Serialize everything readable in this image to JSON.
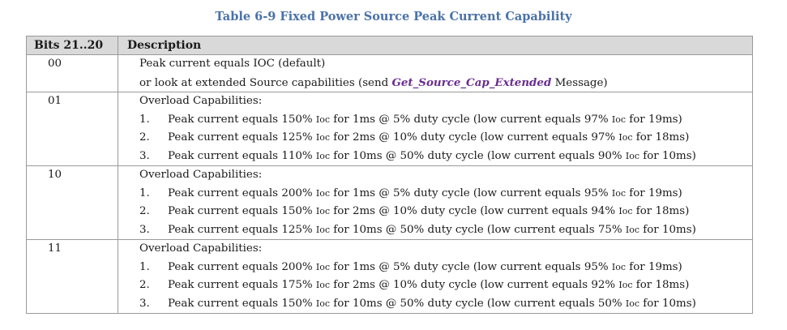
{
  "caption": "Table 6-9 Fixed Power Source Peak Current Capability",
  "headers": {
    "bits": "Bits 21..20",
    "description": "Description"
  },
  "row00": {
    "bits": "00",
    "line1_a": "Peak current equals ",
    "line1_ioc": "IOC",
    "line1_b": " (default)",
    "line2_a": "or look at extended Source capabilities (send ",
    "line2_cmd": "Get_Source_Cap_Extended",
    "line2_b": " Message)"
  },
  "rows": [
    {
      "bits": "01",
      "title": "Overload Capabilities:",
      "items": [
        {
          "num": "1.",
          "peak": "150%",
          "pt": "1ms",
          "duty": "5%",
          "low": "97%",
          "lt": "19ms"
        },
        {
          "num": "2.",
          "peak": "125%",
          "pt": "2ms",
          "duty": "10%",
          "low": "97%",
          "lt": "18ms"
        },
        {
          "num": "3.",
          "peak": "110%",
          "pt": "10ms",
          "duty": "50%",
          "low": "90%",
          "lt": "10ms"
        }
      ]
    },
    {
      "bits": "10",
      "title": "Overload Capabilities:",
      "items": [
        {
          "num": "1.",
          "peak": "200%",
          "pt": "1ms",
          "duty": "5%",
          "low": "95%",
          "lt": "19ms"
        },
        {
          "num": "2.",
          "peak": "150%",
          "pt": "2ms",
          "duty": "10%",
          "low": "94%",
          "lt": "18ms"
        },
        {
          "num": "3.",
          "peak": "125%",
          "pt": "10ms",
          "duty": "50%",
          "low": "75%",
          "lt": "10ms"
        }
      ]
    },
    {
      "bits": "11",
      "title": "Overload Capabilities:",
      "items": [
        {
          "num": "1.",
          "peak": "200%",
          "pt": "1ms",
          "duty": "5%",
          "low": "95%",
          "lt": "19ms"
        },
        {
          "num": "2.",
          "peak": "175%",
          "pt": "2ms",
          "duty": "10%",
          "low": "92%",
          "lt": "18ms"
        },
        {
          "num": "3.",
          "peak": "150%",
          "pt": "10ms",
          "duty": "50%",
          "low": "50%",
          "lt": "10ms"
        }
      ]
    }
  ],
  "phrases": {
    "peak_prefix": "Peak current equals ",
    "ioc": "Ioc",
    "for": " for ",
    "at": " @ ",
    "duty_suffix": " duty cycle (low current equals ",
    "close": ")"
  },
  "colors": {
    "caption": "#4a72a8",
    "header_bg": "#d9d9d9",
    "command": "#6a2d91"
  }
}
